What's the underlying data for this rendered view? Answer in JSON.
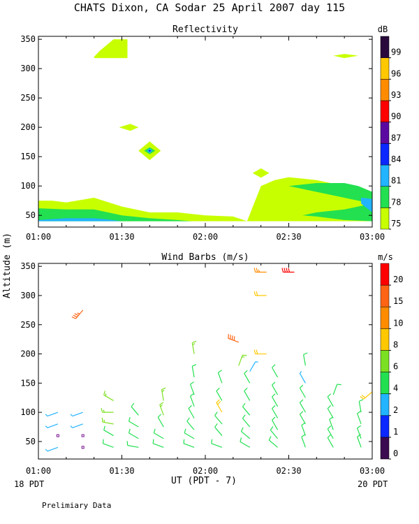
{
  "title": "CHATS Dixon, CA  Sodar  25 April 2007  day 115",
  "ylabel": "Altitude (m)",
  "xlabel": "UT  (PDT - 7)",
  "left_date": "18 PDT",
  "right_date": "20 PDT",
  "footnote": "Prelimiary Data",
  "chart_data": [
    {
      "type": "heatmap",
      "title": "Reflectivity",
      "xlabel": "UT  (PDT - 7)",
      "ylabel": "Altitude (m)",
      "x_ticks": [
        "01:00",
        "01:30",
        "02:00",
        "02:30",
        "03:00"
      ],
      "xlim": [
        0,
        120
      ],
      "y_ticks": [
        50,
        100,
        150,
        200,
        250,
        300,
        350
      ],
      "ylim": [
        30,
        355
      ],
      "colorbar": {
        "unit": "dB",
        "levels": [
          75,
          78,
          81,
          84,
          87,
          90,
          93,
          96,
          99
        ],
        "colors": [
          "#c8ff00",
          "#22e050",
          "#22b4ff",
          "#0a28ff",
          "#5a0aa0",
          "#ff0000",
          "#ff8c00",
          "#ffc800",
          "#2a0a3c"
        ]
      },
      "regions": [
        {
          "level": 75,
          "x": [
            0,
            5,
            10,
            20,
            30,
            40,
            50,
            60,
            70,
            75,
            80,
            85,
            90,
            100,
            110,
            115,
            120,
            120,
            110,
            100,
            90,
            87,
            82,
            80,
            75,
            70,
            60,
            50,
            40,
            30,
            20,
            10,
            0
          ],
          "y": [
            75,
            75,
            72,
            80,
            65,
            55,
            55,
            50,
            48,
            40,
            100,
            110,
            115,
            110,
            100,
            95,
            90,
            40,
            40,
            40,
            40,
            40,
            40,
            40,
            40,
            40,
            40,
            40,
            40,
            40,
            40,
            40,
            40
          ]
        },
        {
          "level": 75,
          "x": [
            20,
            22,
            27,
            32,
            32,
            20
          ],
          "y": [
            320,
            330,
            350,
            350,
            318,
            318
          ]
        },
        {
          "level": 75,
          "x": [
            29,
            33,
            36,
            33
          ],
          "y": [
            200,
            206,
            200,
            194
          ]
        },
        {
          "level": 75,
          "x": [
            36,
            40,
            44,
            40
          ],
          "y": [
            160,
            176,
            160,
            144
          ]
        },
        {
          "level": 75,
          "x": [
            77,
            80,
            83,
            80
          ],
          "y": [
            122,
            130,
            122,
            114
          ]
        },
        {
          "level": 75,
          "x": [
            106,
            110,
            115,
            110
          ],
          "y": [
            322,
            325,
            322,
            318
          ]
        },
        {
          "level": 78,
          "x": [
            0,
            10,
            20,
            30,
            40,
            50,
            55,
            55,
            50,
            40,
            30,
            20,
            10,
            0
          ],
          "y": [
            62,
            60,
            60,
            50,
            45,
            42,
            40,
            40,
            40,
            40,
            40,
            40,
            40,
            40
          ]
        },
        {
          "level": 78,
          "x": [
            38,
            40,
            42,
            40
          ],
          "y": [
            160,
            166,
            160,
            154
          ]
        },
        {
          "level": 78,
          "x": [
            90,
            100,
            110,
            115,
            120,
            120,
            110,
            100,
            95,
            100,
            110,
            120
          ],
          "y": [
            100,
            105,
            105,
            100,
            90,
            40,
            42,
            48,
            50,
            55,
            60,
            70
          ]
        },
        {
          "level": 81,
          "x": [
            0,
            10,
            20,
            25,
            30,
            25,
            20,
            10,
            0
          ],
          "y": [
            42,
            45,
            45,
            43,
            40,
            40,
            40,
            40,
            40
          ]
        },
        {
          "level": 81,
          "x": [
            39,
            40,
            41,
            40
          ],
          "y": [
            160,
            164,
            160,
            156
          ]
        },
        {
          "level": 81,
          "x": [
            116,
            120,
            120,
            116
          ],
          "y": [
            80,
            78,
            55,
            70
          ]
        },
        {
          "level": 84,
          "x": [
            39.5,
            40,
            40.5,
            40
          ],
          "y": [
            160,
            161.5,
            160,
            158.5
          ]
        }
      ]
    },
    {
      "type": "scatter",
      "title": "Wind Barbs (m/s)",
      "xlabel": "UT  (PDT - 7)",
      "ylabel": "Altitude (m)",
      "x_ticks": [
        "01:00",
        "01:30",
        "02:00",
        "02:30",
        "03:00"
      ],
      "xlim": [
        0,
        120
      ],
      "y_ticks": [
        50,
        100,
        150,
        200,
        250,
        300,
        350
      ],
      "ylim": [
        20,
        355
      ],
      "colorbar": {
        "unit": "m/s",
        "levels": [
          0,
          1,
          2,
          4,
          6,
          8,
          10,
          15,
          20
        ],
        "colors": [
          "#3c0a50",
          "#0a28ff",
          "#22b4ff",
          "#22e050",
          "#7ce022",
          "#ffc800",
          "#ff8c00",
          "#ff6414",
          "#ff0000"
        ]
      },
      "calm_markers": [
        [
          7,
          60
        ],
        [
          16,
          60
        ],
        [
          16,
          40
        ]
      ],
      "barbs": [
        [
          7,
          100,
          250,
          3
        ],
        [
          7,
          80,
          250,
          3
        ],
        [
          7,
          40,
          250,
          3
        ],
        [
          16,
          100,
          250,
          3
        ],
        [
          16,
          80,
          250,
          3
        ],
        [
          16,
          275,
          220,
          15
        ],
        [
          27,
          100,
          270,
          6
        ],
        [
          27,
          80,
          280,
          7
        ],
        [
          27,
          120,
          300,
          7
        ],
        [
          27,
          60,
          300,
          5
        ],
        [
          27,
          40,
          290,
          4
        ],
        [
          36,
          95,
          320,
          5
        ],
        [
          36,
          75,
          300,
          5
        ],
        [
          36,
          55,
          300,
          4
        ],
        [
          36,
          40,
          280,
          4
        ],
        [
          45,
          120,
          350,
          6
        ],
        [
          45,
          95,
          340,
          6
        ],
        [
          45,
          75,
          330,
          5
        ],
        [
          45,
          55,
          300,
          4
        ],
        [
          45,
          40,
          290,
          5
        ],
        [
          56,
          200,
          350,
          6
        ],
        [
          56,
          160,
          350,
          5
        ],
        [
          56,
          130,
          340,
          4
        ],
        [
          56,
          110,
          340,
          4
        ],
        [
          56,
          90,
          330,
          4
        ],
        [
          56,
          70,
          320,
          4
        ],
        [
          56,
          55,
          300,
          4
        ],
        [
          56,
          40,
          290,
          4
        ],
        [
          66,
          150,
          340,
          4
        ],
        [
          66,
          120,
          330,
          4
        ],
        [
          66,
          100,
          330,
          8
        ],
        [
          66,
          80,
          320,
          5
        ],
        [
          66,
          60,
          320,
          4
        ],
        [
          66,
          40,
          290,
          4
        ],
        [
          72,
          220,
          290,
          18
        ],
        [
          72,
          180,
          20,
          6
        ],
        [
          76,
          170,
          30,
          2
        ],
        [
          76,
          150,
          330,
          4
        ],
        [
          76,
          120,
          330,
          4
        ],
        [
          76,
          95,
          320,
          4
        ],
        [
          76,
          75,
          320,
          4
        ],
        [
          76,
          55,
          310,
          4
        ],
        [
          76,
          40,
          300,
          4
        ],
        [
          82,
          340,
          270,
          11
        ],
        [
          82,
          300,
          270,
          9
        ],
        [
          82,
          200,
          270,
          9
        ],
        [
          86,
          160,
          330,
          4
        ],
        [
          86,
          130,
          330,
          4
        ],
        [
          86,
          110,
          330,
          4
        ],
        [
          86,
          90,
          330,
          4
        ],
        [
          86,
          70,
          330,
          4
        ],
        [
          86,
          55,
          320,
          4
        ],
        [
          86,
          40,
          310,
          4
        ],
        [
          92,
          340,
          270,
          20
        ],
        [
          96,
          180,
          350,
          4
        ],
        [
          96,
          150,
          330,
          2
        ],
        [
          96,
          125,
          330,
          4
        ],
        [
          96,
          100,
          330,
          4
        ],
        [
          96,
          80,
          330,
          4
        ],
        [
          96,
          60,
          340,
          4
        ],
        [
          96,
          40,
          340,
          4
        ],
        [
          106,
          130,
          20,
          5
        ],
        [
          106,
          110,
          330,
          4
        ],
        [
          106,
          90,
          330,
          4
        ],
        [
          106,
          70,
          340,
          4
        ],
        [
          106,
          55,
          330,
          4
        ],
        [
          106,
          40,
          330,
          4
        ],
        [
          116,
          100,
          350,
          4
        ],
        [
          116,
          80,
          340,
          4
        ],
        [
          116,
          55,
          340,
          4
        ],
        [
          116,
          40,
          340,
          4
        ],
        [
          120,
          135,
          230,
          8
        ]
      ]
    }
  ]
}
